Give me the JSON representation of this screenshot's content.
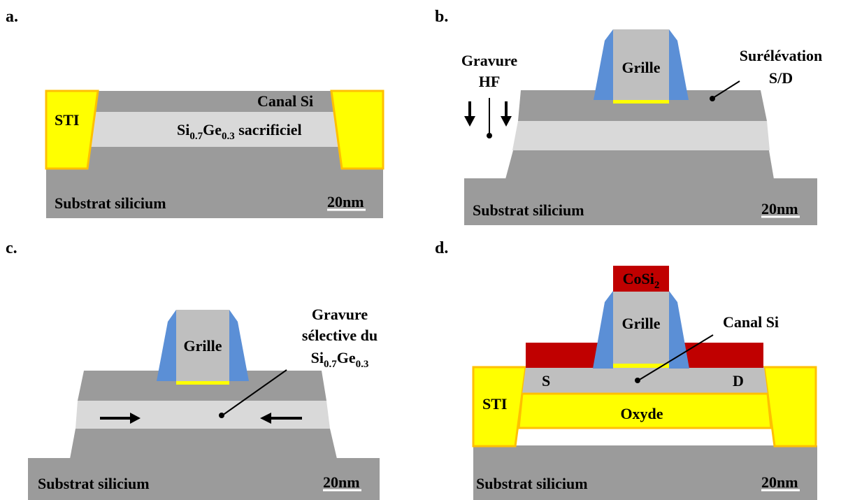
{
  "colors": {
    "silicon_dark": "#9b9b9b",
    "sige_light": "#d9d9d9",
    "sti_yellow": "#ffff00",
    "sti_border": "#ffc000",
    "gate_gray": "#bfbfbf",
    "spacer_blue": "#5b8fd6",
    "silicide_red": "#c00000"
  },
  "panels": {
    "a": {
      "letter": "a.",
      "sti": "STI",
      "canal": "Canal Si",
      "sige_main": "Si",
      "sige_sub1": "0.7",
      "sige_ge": "Ge",
      "sige_sub2": "0.3",
      "sige_suffix": " sacrificiel",
      "substrat": "Substrat silicium",
      "scale": "20nm"
    },
    "b": {
      "letter": "b.",
      "gravure_line1": "Gravure",
      "gravure_line2": "HF",
      "grille": "Grille",
      "surelevation_line1": "Surélévation",
      "surelevation_line2": "S/D",
      "substrat": "Substrat silicium",
      "scale": "20nm"
    },
    "c": {
      "letter": "c.",
      "grille": "Grille",
      "gravure_line1": "Gravure",
      "gravure_line2": "sélective du",
      "sige_main": "Si",
      "sige_sub1": "0.7",
      "sige_ge": "Ge",
      "sige_sub2": "0.3",
      "substrat": "Substrat silicium",
      "scale": "20nm"
    },
    "d": {
      "letter": "d.",
      "cosi_main": "CoSi",
      "cosi_sub": "2",
      "grille": "Grille",
      "canal": "Canal Si",
      "source": "S",
      "drain": "D",
      "sti": "STI",
      "oxyde": "Oxyde",
      "substrat": "Substrat silicium",
      "scale": "20nm"
    }
  }
}
